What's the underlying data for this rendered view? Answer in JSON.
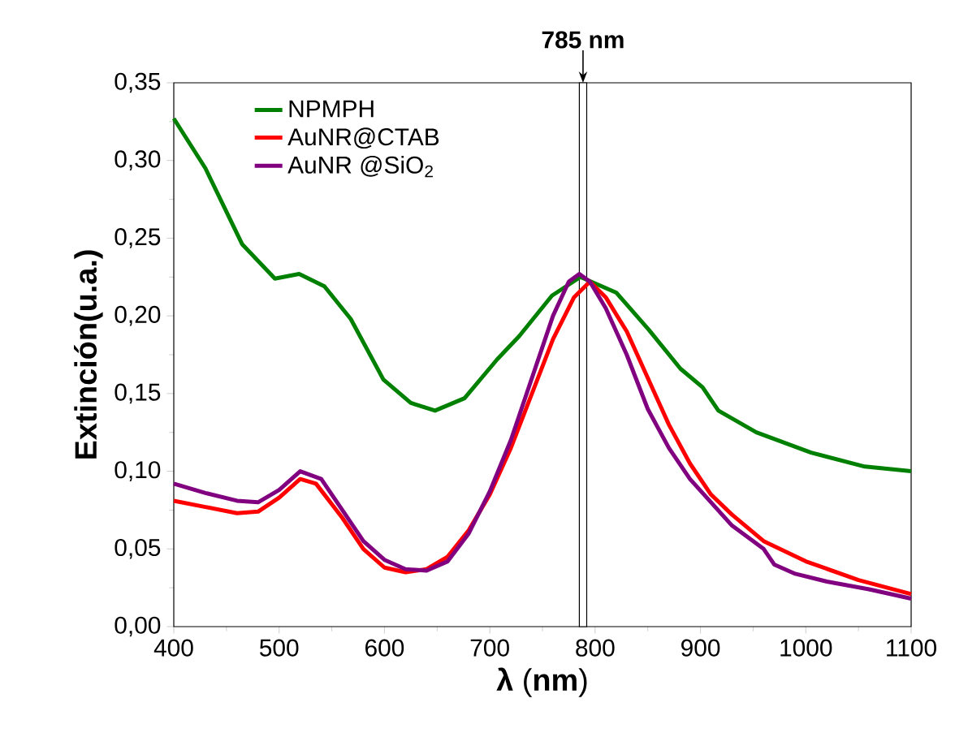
{
  "chart_data": {
    "type": "line",
    "xlabel": "**λ** (**nm**)",
    "ylabel": "Extinción(u.a.)",
    "xlim": [
      400,
      1100
    ],
    "xticks": [
      400,
      500,
      600,
      700,
      800,
      900,
      1000,
      1100
    ],
    "ylim": [
      0,
      0.35
    ],
    "yticks": [
      {
        "value": 0,
        "label": "0,00"
      },
      {
        "value": 0.05,
        "label": "0,05"
      },
      {
        "value": 0.1,
        "label": "0,10"
      },
      {
        "value": 0.15,
        "label": "0,15"
      },
      {
        "value": 0.2,
        "label": "0,20"
      },
      {
        "value": 0.25,
        "label": "0,25"
      },
      {
        "value": 0.3,
        "label": "0,30"
      },
      {
        "value": 0.35,
        "label": "0,35"
      }
    ],
    "grid": false,
    "legend": "top left",
    "marker": "none",
    "line_style": "solid",
    "bands": [
      {
        "axis": "x",
        "from": 785,
        "to": 792,
        "label": "785 nm"
      }
    ],
    "series": [
      {
        "name": "NPMPH",
        "color": "#008000",
        "x": [
          400,
          430,
          465,
          496,
          519,
          543,
          568,
          599,
          625,
          648,
          676,
          707,
          728,
          759,
          786,
          820,
          851,
          881,
          902,
          917,
          953,
          1005,
          1056,
          1100
        ],
        "values": [
          0.327,
          0.295,
          0.246,
          0.224,
          0.227,
          0.219,
          0.198,
          0.159,
          0.144,
          0.139,
          0.147,
          0.172,
          0.187,
          0.213,
          0.225,
          0.215,
          0.191,
          0.166,
          0.154,
          0.139,
          0.125,
          0.112,
          0.103,
          0.1
        ]
      },
      {
        "name": "AuNR@CTAB",
        "color": "#ff0000",
        "x": [
          400,
          430,
          460,
          480,
          500,
          520,
          535,
          560,
          580,
          600,
          620,
          640,
          660,
          680,
          700,
          720,
          740,
          760,
          780,
          795,
          810,
          830,
          850,
          870,
          890,
          910,
          930,
          960,
          1000,
          1050,
          1100
        ],
        "values": [
          0.081,
          0.077,
          0.073,
          0.074,
          0.083,
          0.095,
          0.092,
          0.07,
          0.05,
          0.038,
          0.035,
          0.037,
          0.045,
          0.062,
          0.085,
          0.115,
          0.15,
          0.185,
          0.212,
          0.222,
          0.212,
          0.19,
          0.16,
          0.13,
          0.105,
          0.085,
          0.072,
          0.055,
          0.042,
          0.03,
          0.021
        ]
      },
      {
        "name": "AuNR @SiO$_{2}$",
        "color": "#800080",
        "x": [
          400,
          430,
          460,
          480,
          500,
          520,
          540,
          560,
          580,
          600,
          620,
          640,
          660,
          680,
          700,
          720,
          740,
          760,
          775,
          785,
          795,
          810,
          830,
          850,
          870,
          890,
          910,
          930,
          960,
          970,
          990,
          1020,
          1060,
          1100
        ],
        "values": [
          0.092,
          0.086,
          0.081,
          0.08,
          0.088,
          0.1,
          0.095,
          0.075,
          0.055,
          0.043,
          0.037,
          0.036,
          0.042,
          0.06,
          0.087,
          0.12,
          0.16,
          0.2,
          0.222,
          0.227,
          0.222,
          0.205,
          0.175,
          0.14,
          0.115,
          0.095,
          0.08,
          0.065,
          0.05,
          0.04,
          0.034,
          0.029,
          0.024,
          0.018
        ]
      }
    ]
  }
}
